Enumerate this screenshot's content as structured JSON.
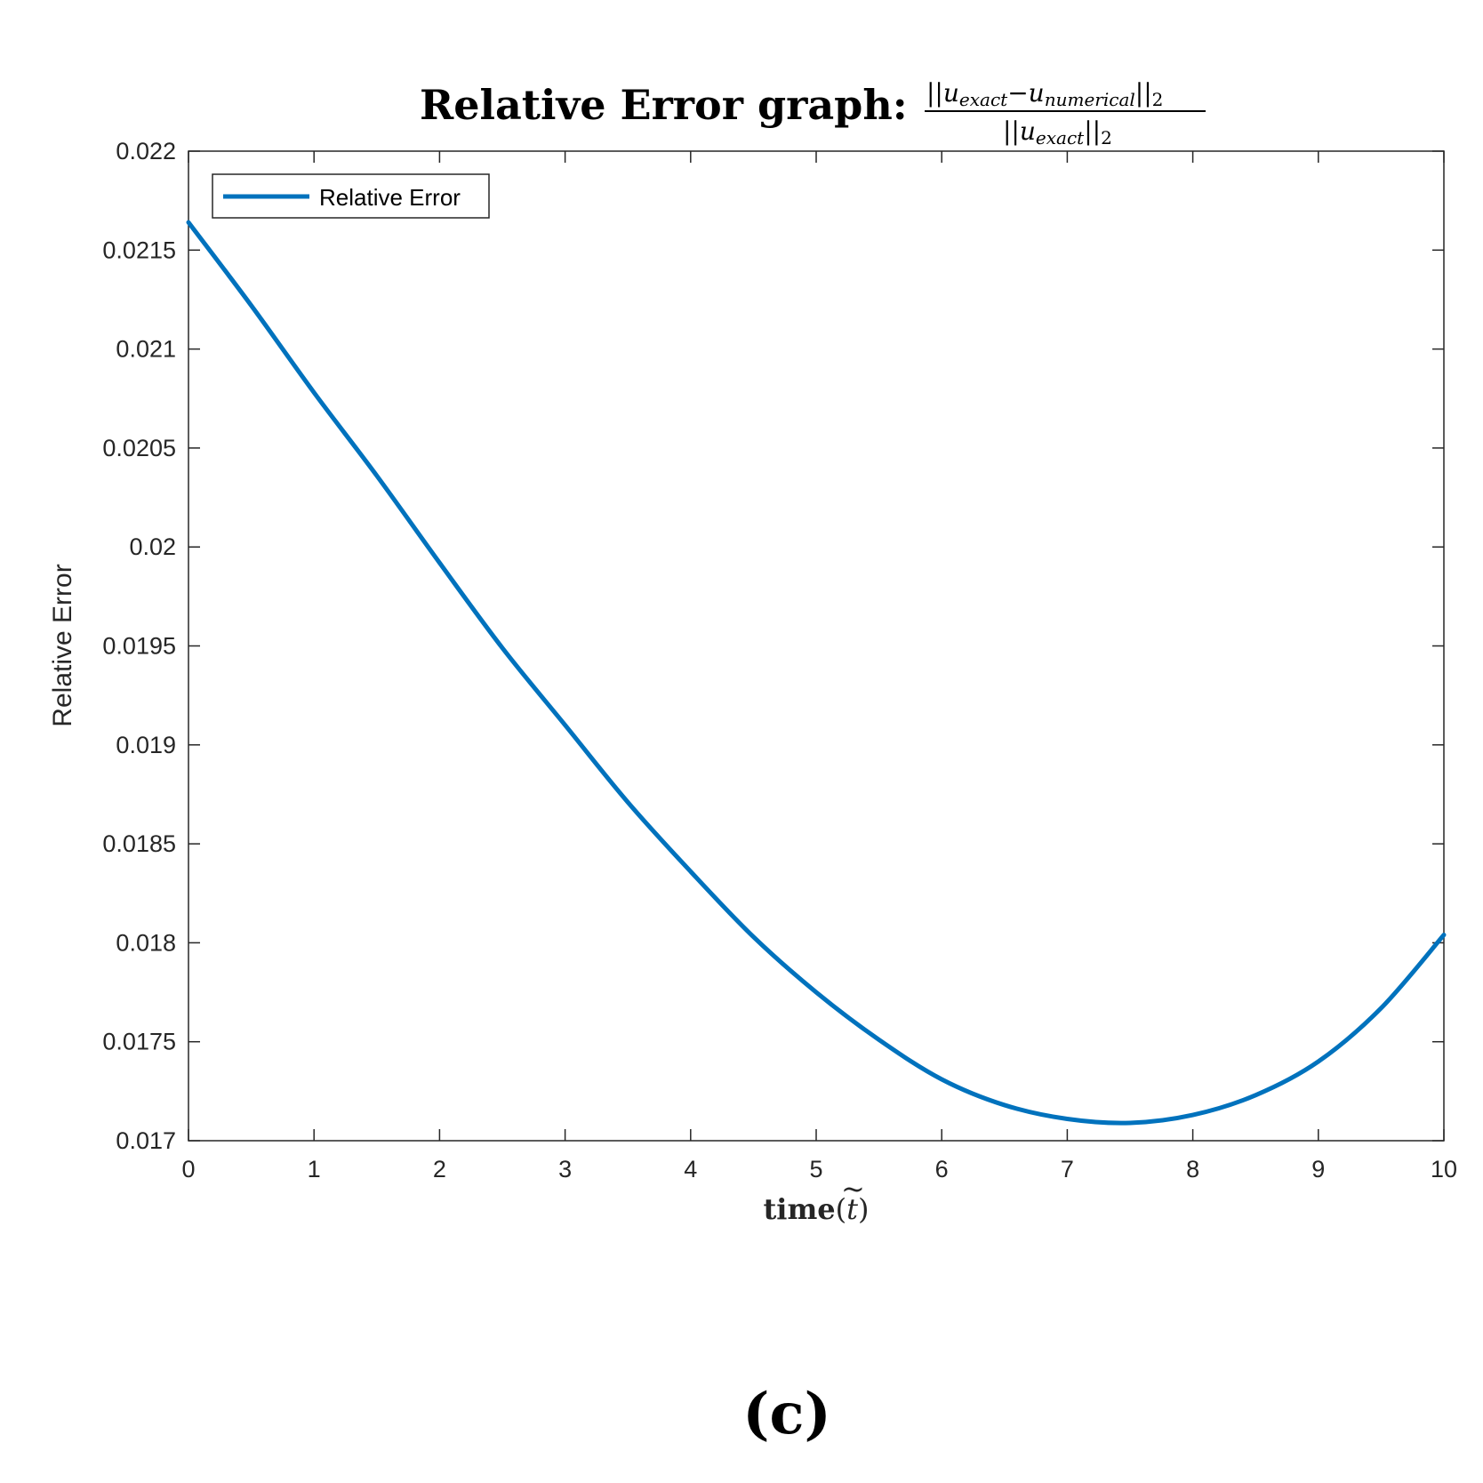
{
  "chart_data": {
    "type": "line",
    "title": {
      "prefix": "Relative Error graph:",
      "numerator": {
        "open_bars": "||",
        "u1": "u",
        "sub1": "exact",
        "minus": "−",
        "u2": "u",
        "sub2": "numerical",
        "close_bars": "||",
        "norm": "2"
      },
      "denominator": {
        "open_bars": "||",
        "u": "u",
        "sub": "exact",
        "close_bars": "||",
        "norm": "2"
      }
    },
    "xlabel": {
      "text": "time",
      "open_paren": "(",
      "var": "t",
      "tilde": "~",
      "close_paren": ")"
    },
    "ylabel": "Relative Error",
    "xlim": [
      0,
      10
    ],
    "ylim": [
      0.017,
      0.022
    ],
    "x_ticks": [
      "0",
      "1",
      "2",
      "3",
      "4",
      "5",
      "6",
      "7",
      "8",
      "9",
      "10"
    ],
    "y_ticks": [
      "0.017",
      "0.0175",
      "0.018",
      "0.0185",
      "0.019",
      "0.0195",
      "0.02",
      "0.0205",
      "0.021",
      "0.0215",
      "0.022"
    ],
    "grid": false,
    "legend_position": "top-left",
    "series": [
      {
        "name": "Relative Error",
        "color": "#0072BD",
        "x": [
          0,
          0.5,
          1,
          1.5,
          2,
          2.5,
          3,
          3.5,
          4,
          4.5,
          5,
          5.5,
          6,
          6.5,
          7,
          7.5,
          8,
          8.5,
          9,
          9.5,
          10
        ],
        "y": [
          0.02164,
          0.02122,
          0.02078,
          0.02036,
          0.01992,
          0.01949,
          0.0191,
          0.01871,
          0.01836,
          0.01803,
          0.01775,
          0.01751,
          0.01731,
          0.01718,
          0.01711,
          0.01709,
          0.01713,
          0.01723,
          0.0174,
          0.01767,
          0.01804
        ]
      }
    ]
  },
  "panel_label": "(c)"
}
